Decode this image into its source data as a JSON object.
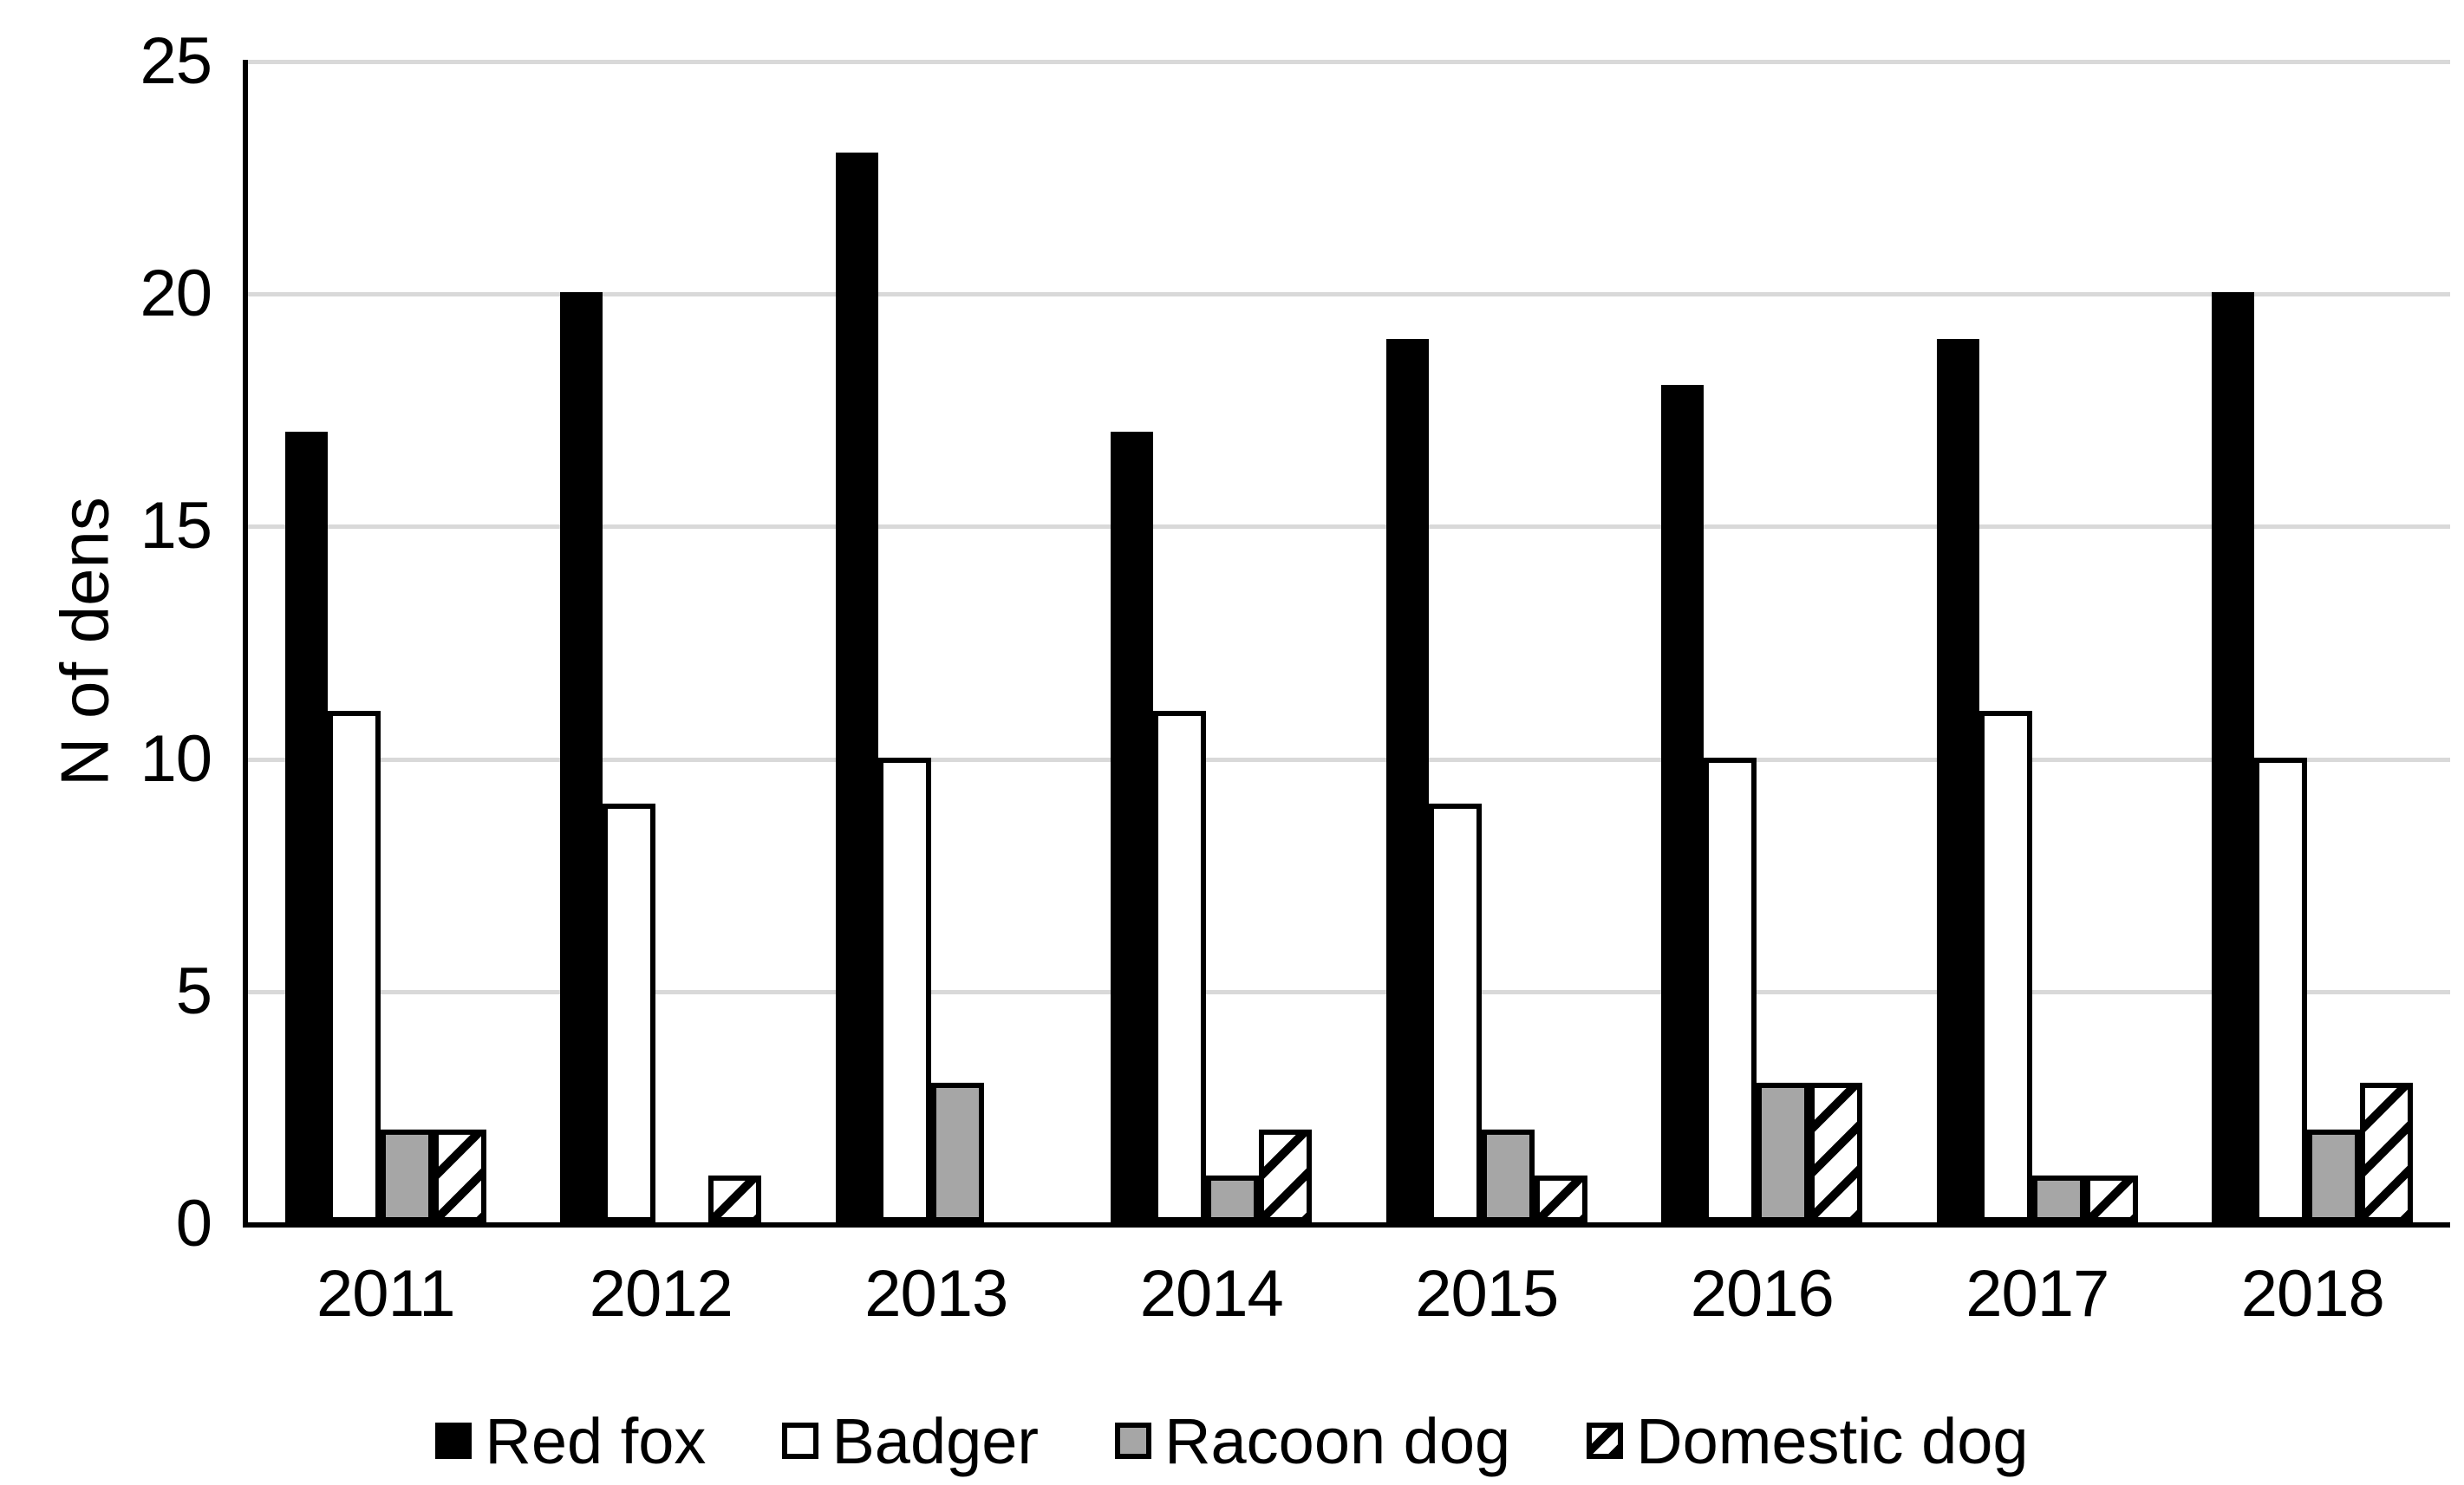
{
  "chart_data": {
    "type": "bar",
    "title": "",
    "categories": [
      "2011",
      "2012",
      "2013",
      "2014",
      "2015",
      "2016",
      "2017",
      "2018"
    ],
    "series": [
      {
        "name": "Red fox",
        "fill": "solid-black",
        "color": "#000000",
        "values": [
          17,
          20,
          23,
          17,
          19,
          18,
          19,
          20
        ]
      },
      {
        "name": "Badger",
        "fill": "solid-white",
        "color": "#FFFFFF",
        "border_color": "#000000",
        "values": [
          11,
          9,
          10,
          11,
          9,
          10,
          11,
          10
        ]
      },
      {
        "name": "Racoon dog",
        "fill": "solid-gray",
        "color": "#A6A6A6",
        "border_color": "#000000",
        "values": [
          2,
          0,
          3,
          1,
          2,
          3,
          1,
          2
        ]
      },
      {
        "name": "Domestic dog",
        "fill": "diagonal-hatch",
        "color": "#FFFFFF",
        "hatch_color": "#000000",
        "border_color": "#000000",
        "values": [
          2,
          1,
          0,
          2,
          1,
          3,
          1,
          3
        ]
      }
    ],
    "xlabel": "",
    "ylabel": "N of dens",
    "ylim": [
      0,
      25
    ],
    "yticks": [
      0,
      5,
      10,
      15,
      20,
      25
    ],
    "grid": "horizontal",
    "gridline_color": "#D9D9D9",
    "axis_color": "#000000",
    "legend_position": "bottom"
  }
}
